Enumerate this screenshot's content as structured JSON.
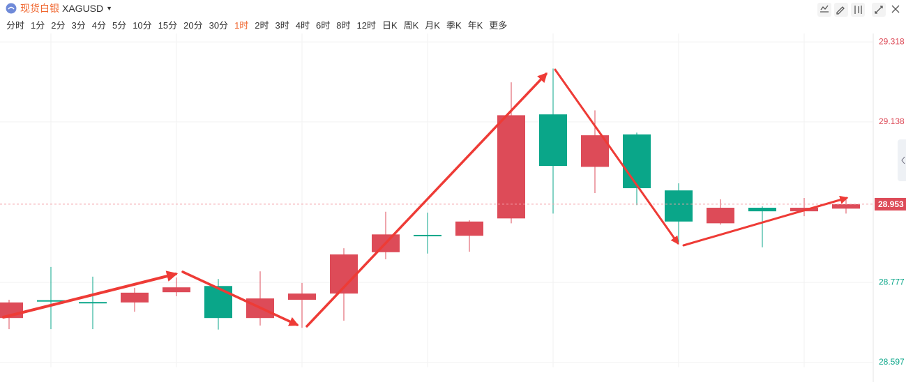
{
  "header": {
    "symbol_name": "现货白银",
    "symbol": "XAGUSD"
  },
  "periods": [
    "分时",
    "1分",
    "2分",
    "3分",
    "4分",
    "5分",
    "10分",
    "15分",
    "20分",
    "30分",
    "1时",
    "2时",
    "3时",
    "4时",
    "6时",
    "8时",
    "12时",
    "日K",
    "周K",
    "月K",
    "季K",
    "年K",
    "更多"
  ],
  "active_period": 10,
  "chart_data": {
    "type": "candlestick",
    "up_color": "#dd4b58",
    "down_color": "#0aa689",
    "open": [
      28.697,
      28.737,
      28.733,
      28.732,
      28.755,
      28.769,
      28.697,
      28.738,
      28.752,
      28.845,
      28.884,
      28.882,
      28.921,
      29.155,
      29.037,
      29.11,
      28.984,
      28.91,
      28.945,
      28.937,
      28.943
    ],
    "high": [
      28.738,
      28.812,
      28.79,
      28.765,
      28.788,
      28.785,
      28.802,
      28.776,
      28.854,
      28.936,
      28.934,
      28.917,
      29.227,
      29.258,
      29.164,
      29.114,
      29.0,
      28.964,
      28.948,
      28.967,
      28.967
    ],
    "low": [
      28.672,
      28.672,
      28.672,
      28.711,
      28.746,
      28.671,
      28.68,
      28.675,
      28.691,
      28.829,
      28.842,
      28.846,
      28.91,
      28.932,
      28.978,
      28.951,
      28.867,
      28.907,
      28.856,
      28.926,
      28.932
    ],
    "close": [
      28.732,
      28.735,
      28.731,
      28.754,
      28.766,
      28.697,
      28.741,
      28.752,
      28.84,
      28.885,
      28.881,
      28.914,
      29.153,
      29.039,
      29.108,
      28.989,
      28.914,
      28.945,
      28.937,
      28.945,
      28.953
    ],
    "ylim": [
      28.586,
      29.337
    ],
    "yticks": [
      29.318,
      29.138,
      28.777,
      28.597
    ],
    "last_price": 28.953,
    "grid": true
  }
}
